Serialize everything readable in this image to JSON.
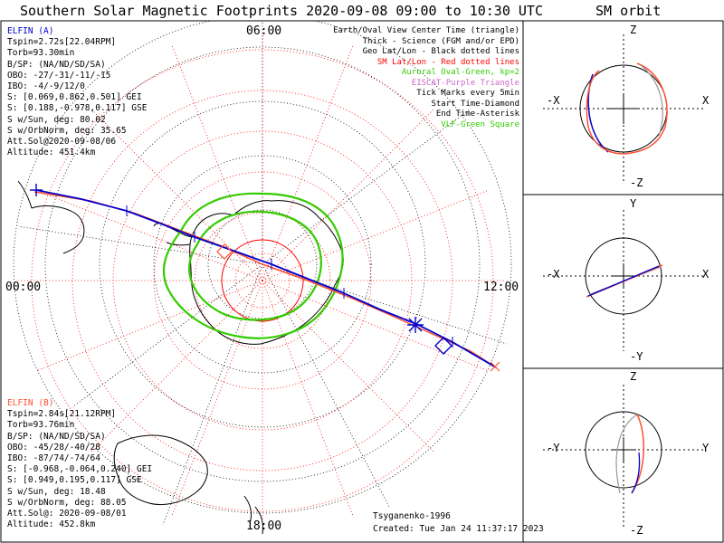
{
  "title": "Southern Solar Magnetic Footprints 2020-09-08 09:00 to 10:30 UTC",
  "orbit_title": "SM orbit",
  "map": {
    "lt_top": "06:00",
    "lt_left": "00:00",
    "lt_right": "12:00",
    "lt_bottom": "18:00"
  },
  "legend": [
    {
      "text": "Earth/Oval View Center Time (triangle)",
      "color": "#000000"
    },
    {
      "text": "Thick - Science (FGM and/or EPD)",
      "color": "#000000"
    },
    {
      "text": "Geo Lat/Lon - Black dotted lines",
      "color": "#000000"
    },
    {
      "text": "SM Lat/Lon - Red dotted lines",
      "color": "#ff0000"
    },
    {
      "text": "Auroral Oval-Green, kp=2",
      "color": "#33cc00"
    },
    {
      "text": "EISCAT-Purple Triangle",
      "color": "#cc66cc"
    },
    {
      "text": "Tick Marks every 5min",
      "color": "#000000"
    },
    {
      "text": "Start Time-Diamond",
      "color": "#000000"
    },
    {
      "text": "End Time-Asterisk",
      "color": "#000000"
    },
    {
      "text": "VLF-Green Square",
      "color": "#33cc00"
    }
  ],
  "elfin_a": {
    "name": "ELFIN (A)",
    "lines": [
      "Tspin=2.72s[22.04RPM]",
      "Torb=93.30min",
      "B/SP: (NA/ND/SD/SA)",
      "OBO: -27/-31/-11/-15",
      "IBO: -4/-9/12/0",
      "S: [0.069,0.862,0.501] GEI",
      "S: [0.188,-0.978,0.117] GSE",
      "S w/Sun, deg: 80.02",
      "S w/OrbNorm, deg: 35.65",
      "Att.Sol@2020-09-08/06",
      "Altitude: 451.4km"
    ]
  },
  "elfin_b": {
    "name": "ELFIN (B)",
    "lines": [
      "Tspin=2.84s[21.12RPM]",
      "Torb=93.76min",
      "B/SP: (NA/ND/SD/SA)",
      "OBO: -45/28/-40/28",
      "IBO: -87/74/-74/64",
      "S: [-0.968,-0.064,0.240] GEI",
      "S: [0.949,0.195,0.117] GSE",
      "S w/Sun, deg: 18.48",
      "S w/OrbNorm, deg: 88.05",
      "Att.Sol@: 2020-09-08/01",
      "Altitude: 452.8km"
    ]
  },
  "credits": {
    "author": "Tsyganenko-1996",
    "created": "Created: Tue Jan 24 11:37:17 2023"
  },
  "orbit_panels": [
    {
      "top": "Z",
      "bottom": "-Z",
      "left": "-X",
      "right": "X"
    },
    {
      "top": "Y",
      "bottom": "-Y",
      "left": "-X",
      "right": "X"
    },
    {
      "top": "Z",
      "bottom": "-Z",
      "left": "-Y",
      "right": "Y"
    }
  ],
  "colors": {
    "elfin_a": "#0000cc",
    "elfin_b": "#ff5030",
    "oval": "#33cc00",
    "sm_grid": "#ff0000"
  }
}
